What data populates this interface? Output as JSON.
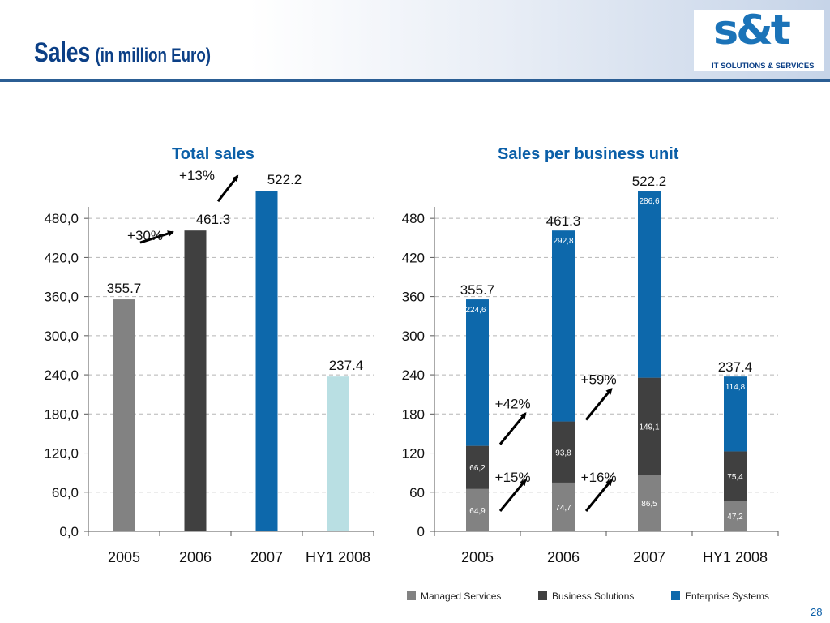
{
  "header": {
    "title": "Sales",
    "subtitle": "(in million Euro)",
    "logo_text": "s&t",
    "logo_tagline": "IT SOLUTIONS & SERVICES"
  },
  "chart_data": [
    {
      "type": "bar",
      "title": "Total sales",
      "categories": [
        "2005",
        "2006",
        "2007",
        "HY1 2008"
      ],
      "values": [
        355.7,
        461.3,
        522.2,
        237.4
      ],
      "value_labels": [
        "355.7",
        "461.3",
        "522.2",
        "237.4"
      ],
      "bar_colors": [
        "#828282",
        "#404040",
        "#0d68ab",
        "#b9dfe3"
      ],
      "ylim": [
        0,
        520
      ],
      "yticks": [
        0,
        60,
        120,
        180,
        240,
        300,
        360,
        420,
        480
      ],
      "ytick_labels": [
        "0,0",
        "60,0",
        "120,0",
        "180,0",
        "240,0",
        "300,0",
        "360,0",
        "420,0",
        "480,0"
      ],
      "grid": true,
      "annotations": [
        {
          "text": "+30%",
          "between": [
            0,
            1
          ]
        },
        {
          "text": "+13%",
          "between": [
            1,
            2
          ]
        }
      ]
    },
    {
      "type": "stacked-bar",
      "title": "Sales per business unit",
      "categories": [
        "2005",
        "2006",
        "2007",
        "HY1 2008"
      ],
      "series": [
        {
          "name": "Managed Services",
          "color": "#828282",
          "values": [
            64.9,
            74.7,
            86.5,
            47.2
          ],
          "labels": [
            "64,9",
            "74,7",
            "86,5",
            "47,2"
          ]
        },
        {
          "name": "Business Solutions",
          "color": "#404040",
          "values": [
            66.2,
            93.8,
            149.1,
            75.4
          ],
          "labels": [
            "66,2",
            "93,8",
            "149,1",
            "75,4"
          ]
        },
        {
          "name": "Enterprise Systems",
          "color": "#0d68ab",
          "values": [
            224.6,
            292.8,
            286.6,
            114.8
          ],
          "labels": [
            "224,6",
            "292,8",
            "286,6",
            "114,8"
          ]
        }
      ],
      "totals": [
        "355.7",
        "461.3",
        "522.2",
        "237.4"
      ],
      "ylim": [
        0,
        520
      ],
      "yticks": [
        0,
        60,
        120,
        180,
        240,
        300,
        360,
        420,
        480
      ],
      "ytick_labels": [
        "0",
        "60",
        "120",
        "180",
        "240",
        "300",
        "360",
        "420",
        "480"
      ],
      "grid": true,
      "annotations": [
        {
          "text": "+15%",
          "series": 0,
          "between": [
            0,
            1
          ]
        },
        {
          "text": "+42%",
          "series": 1,
          "between": [
            0,
            1
          ]
        },
        {
          "text": "+16%",
          "series": 0,
          "between": [
            1,
            2
          ]
        },
        {
          "text": "+59%",
          "series": 1,
          "between": [
            1,
            2
          ]
        }
      ],
      "legend_position": "bottom"
    }
  ],
  "page_number": "28"
}
